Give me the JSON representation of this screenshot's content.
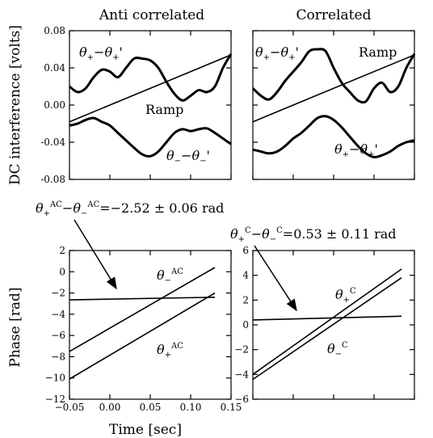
{
  "chart_data": [
    {
      "type": "line",
      "title": "Anti correlated",
      "ylabel": "DC interference [volts]",
      "ylim": [
        -0.08,
        0.08
      ],
      "yticks": [
        -0.08,
        -0.04,
        0.0,
        0.04,
        0.08
      ],
      "ytick_labels": [
        "-0.08",
        "-0.04",
        "0.00",
        "0.04",
        "0.08"
      ],
      "series": [
        {
          "name": "θ+−θ+'",
          "label": "θ₊−θ₊'",
          "x": [
            0,
            0.05,
            0.1,
            0.15,
            0.2,
            0.25,
            0.3,
            0.35,
            0.4,
            0.45,
            0.5,
            0.55,
            0.6,
            0.65,
            0.7,
            0.75,
            0.8,
            0.85,
            0.9,
            0.95,
            1.0
          ],
          "values": [
            0.02,
            0.014,
            0.018,
            0.03,
            0.038,
            0.036,
            0.03,
            0.04,
            0.05,
            0.05,
            0.048,
            0.04,
            0.025,
            0.012,
            0.005,
            0.01,
            0.016,
            0.014,
            0.02,
            0.04,
            0.055
          ]
        },
        {
          "name": "Ramp",
          "label": "Ramp",
          "x": [
            0,
            1
          ],
          "values": [
            -0.018,
            0.054
          ]
        },
        {
          "name": "θ−−θ−'",
          "label": "θ₋−θ₋'",
          "x": [
            0,
            0.05,
            0.1,
            0.15,
            0.2,
            0.25,
            0.3,
            0.35,
            0.4,
            0.45,
            0.5,
            0.55,
            0.6,
            0.65,
            0.7,
            0.75,
            0.8,
            0.85,
            0.9,
            0.95,
            1.0
          ],
          "values": [
            -0.022,
            -0.02,
            -0.016,
            -0.014,
            -0.018,
            -0.022,
            -0.03,
            -0.038,
            -0.046,
            -0.053,
            -0.055,
            -0.05,
            -0.04,
            -0.03,
            -0.026,
            -0.028,
            -0.026,
            -0.025,
            -0.03,
            -0.036,
            -0.042
          ]
        }
      ]
    },
    {
      "type": "line",
      "title": "Correlated",
      "ylim": [
        -0.08,
        0.08
      ],
      "series": [
        {
          "name": "θ+−θ+'",
          "label": "θ₊−θ₊'",
          "x": [
            0,
            0.05,
            0.1,
            0.15,
            0.2,
            0.25,
            0.3,
            0.35,
            0.4,
            0.45,
            0.5,
            0.55,
            0.6,
            0.65,
            0.7,
            0.75,
            0.8,
            0.85,
            0.9,
            0.95,
            1.0
          ],
          "values": [
            0.018,
            0.01,
            0.006,
            0.014,
            0.026,
            0.036,
            0.046,
            0.058,
            0.06,
            0.058,
            0.04,
            0.024,
            0.014,
            0.005,
            0.004,
            0.018,
            0.024,
            0.014,
            0.02,
            0.04,
            0.055
          ]
        },
        {
          "name": "Ramp",
          "label": "Ramp",
          "x": [
            0,
            1
          ],
          "values": [
            -0.018,
            0.054
          ]
        },
        {
          "name": "θ+−θ+' (lower)",
          "label": "θ₊−θ₊'",
          "x": [
            0,
            0.05,
            0.1,
            0.15,
            0.2,
            0.25,
            0.3,
            0.35,
            0.4,
            0.45,
            0.5,
            0.55,
            0.6,
            0.65,
            0.7,
            0.75,
            0.8,
            0.85,
            0.9,
            0.95,
            1.0
          ],
          "values": [
            -0.048,
            -0.05,
            -0.052,
            -0.05,
            -0.044,
            -0.036,
            -0.03,
            -0.022,
            -0.014,
            -0.012,
            -0.016,
            -0.024,
            -0.034,
            -0.044,
            -0.052,
            -0.056,
            -0.054,
            -0.05,
            -0.044,
            -0.04,
            -0.038
          ]
        }
      ]
    },
    {
      "type": "line",
      "xlabel": "Time [sec]",
      "ylabel": "Phase [rad]",
      "xlim": [
        -0.05,
        0.15
      ],
      "ylim": [
        -12,
        2
      ],
      "xticks": [
        -0.05,
        0.0,
        0.05,
        0.1,
        0.15
      ],
      "xtick_labels": [
        "−0.05",
        "0.00",
        "0.05",
        "0.10",
        "0.15"
      ],
      "yticks": [
        -12,
        -10,
        -8,
        -6,
        -4,
        -2,
        0,
        2
      ],
      "ytick_labels": [
        "−12",
        "−10",
        "−8",
        "−6",
        "−4",
        "−2",
        "0",
        "2"
      ],
      "annotation": "θ+AC−θ−AC=−2.52 ± 0.06 rad",
      "series": [
        {
          "name": "θ−AC",
          "label": "θ₋ᴬᶜ",
          "x": [
            -0.05,
            0.13
          ],
          "values": [
            -7.5,
            0.4
          ]
        },
        {
          "name": "θ+AC",
          "label": "θ₊ᴬᶜ",
          "x": [
            -0.05,
            0.13
          ],
          "values": [
            -10.1,
            -2.0
          ]
        },
        {
          "name": "difference",
          "x": [
            -0.05,
            0.13
          ],
          "values": [
            -2.65,
            -2.4
          ]
        }
      ]
    },
    {
      "type": "line",
      "ylim": [
        -6,
        6
      ],
      "yticks": [
        -6,
        -4,
        -2,
        0,
        2,
        4,
        6
      ],
      "ytick_labels": [
        "−6",
        "−4",
        "−2",
        "0",
        "2",
        "4",
        "6"
      ],
      "annotation": "θ+C−θ−C=0.53 ± 0.11 rad",
      "series": [
        {
          "name": "θ+C",
          "label": "θ₊ᶜ",
          "x": [
            0,
            0.92
          ],
          "values": [
            -4.0,
            4.5
          ]
        },
        {
          "name": "θ−C",
          "label": "θ₋ᶜ",
          "x": [
            0,
            0.92
          ],
          "values": [
            -4.4,
            3.8
          ]
        },
        {
          "name": "difference",
          "x": [
            0,
            0.92
          ],
          "values": [
            0.4,
            0.7
          ]
        }
      ]
    }
  ],
  "texts": {
    "title_ac": "Anti correlated",
    "title_c": "Correlated",
    "ylabel_top": "DC interference [volts]",
    "ylabel_bottom": "Phase [rad]",
    "xlabel_bottom": "Time [sec]",
    "ann_ac": "θ+AC−θ−AC=−2.52 ± 0.06 rad",
    "ann_c": "θ+C−θ−C=0.53 ± 0.11 rad",
    "ramp": "Ramp"
  }
}
